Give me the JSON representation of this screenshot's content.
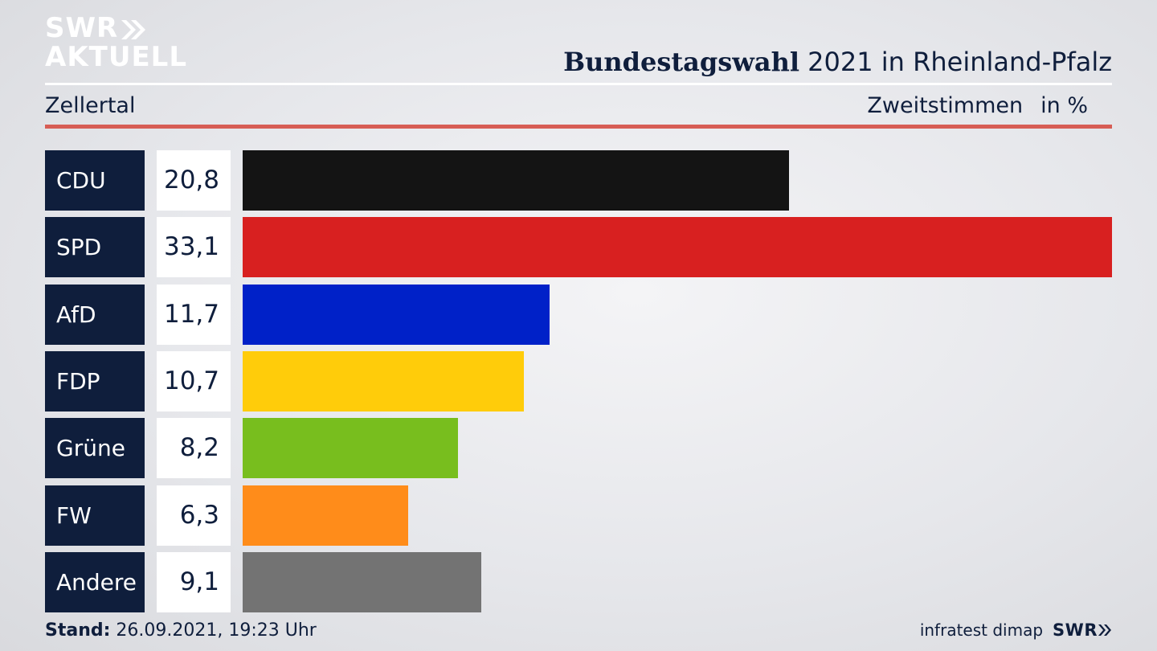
{
  "logo": {
    "line1": "SWR",
    "line2": "AKTUELL"
  },
  "header": {
    "title_bold": "Bundestagswahl",
    "title_rest": "2021 in Rheinland-Pfalz",
    "region": "Zellertal",
    "measure": "Zweitstimmen",
    "unit": "in %"
  },
  "chart_data": {
    "type": "bar",
    "orientation": "horizontal",
    "title": "Bundestagswahl 2021 in Rheinland-Pfalz",
    "subtitle": "Zellertal",
    "xlabel": "Zweitstimmen",
    "ylabel": "in %",
    "categories": [
      "CDU",
      "SPD",
      "AfD",
      "FDP",
      "Grüne",
      "FW",
      "Andere"
    ],
    "values": [
      20.8,
      33.1,
      11.7,
      10.7,
      8.2,
      6.3,
      9.1
    ],
    "labels": [
      "20,8",
      "33,1",
      "11,7",
      "10,7",
      "8,2",
      "6,3",
      "9,1"
    ],
    "colors": [
      "#141414",
      "#d82020",
      "#0021c8",
      "#ffcc0a",
      "#78be1e",
      "#ff8c1a",
      "#737373"
    ],
    "xlim": [
      0,
      33.1
    ],
    "grid": false,
    "legend": "none"
  },
  "footer": {
    "stand_label": "Stand:",
    "stand_value": "26.09.2021, 19:23 Uhr",
    "source": "infratest dimap",
    "brand": "SWR"
  },
  "colors": {
    "navy": "#0f1e3c",
    "accent_red": "#d75d55"
  }
}
